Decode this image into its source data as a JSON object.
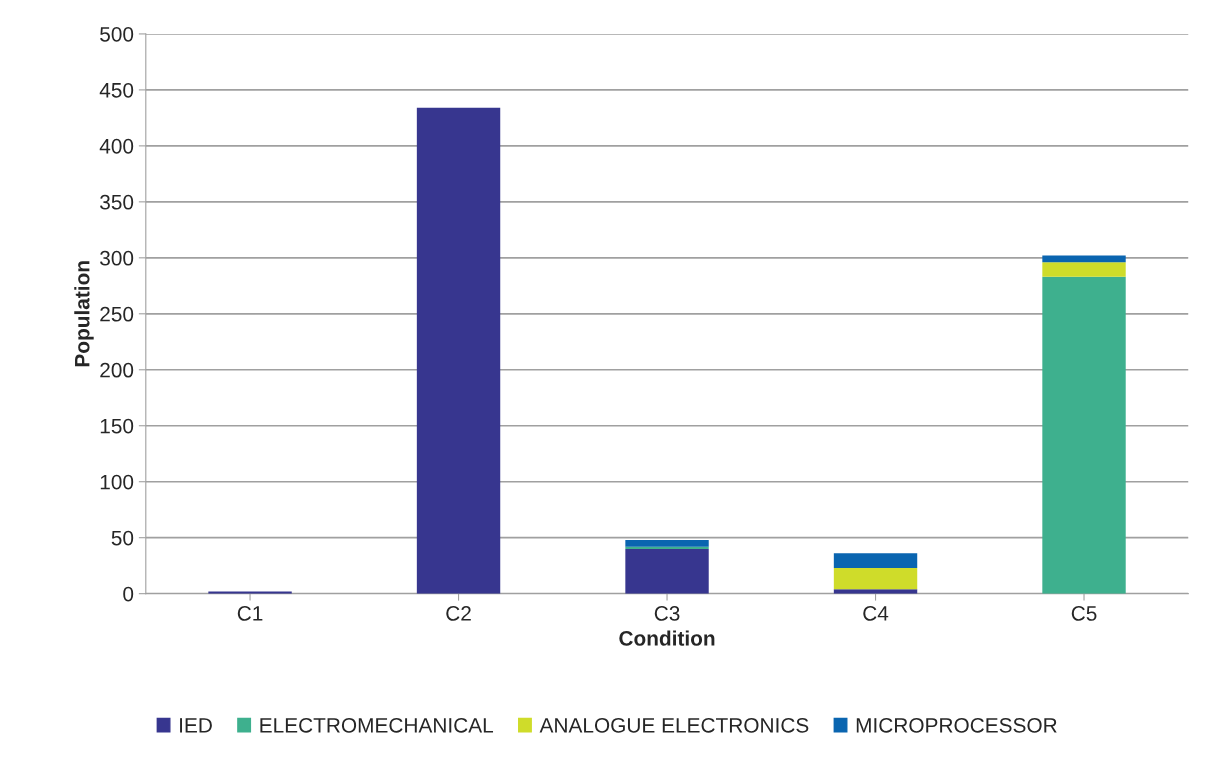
{
  "chart_data": {
    "type": "bar",
    "stacked": true,
    "xlabel": "Condition",
    "ylabel": "Population",
    "categories": [
      "C1",
      "C2",
      "C3",
      "C4",
      "C5"
    ],
    "series": [
      {
        "name": "IED",
        "color": "#37368f",
        "values": [
          2,
          434,
          40,
          4,
          null
        ]
      },
      {
        "name": "ELECTROMECHANICAL",
        "color": "#3eb08e",
        "values": [
          null,
          null,
          2,
          null,
          283
        ]
      },
      {
        "name": "ANALOGUE ELECTRONICS",
        "color": "#cfdc2a",
        "values": [
          null,
          null,
          null,
          19,
          13
        ]
      },
      {
        "name": "MICROPROCESSOR",
        "color": "#0a65b0",
        "values": [
          null,
          null,
          6,
          13,
          6
        ]
      }
    ],
    "ylim": [
      0,
      500
    ],
    "yticks": [
      0,
      50,
      100,
      150,
      200,
      250,
      300,
      350,
      400,
      450,
      500
    ],
    "grid": "y",
    "legend": "bottom"
  }
}
